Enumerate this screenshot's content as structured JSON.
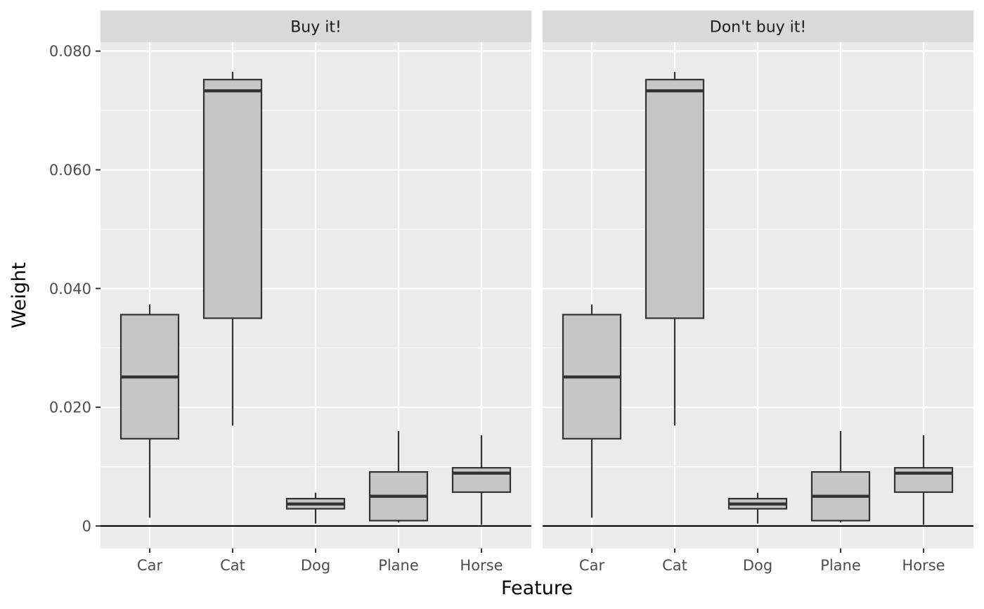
{
  "chart_data": {
    "type": "boxplot",
    "xlabel": "Feature",
    "ylabel": "Weight",
    "ylim": [
      -0.0038,
      0.0815
    ],
    "yticks": [
      0,
      0.02,
      0.04,
      0.06,
      0.08
    ],
    "ytick_labels": [
      "0",
      "0.020",
      "0.040",
      "0.060",
      "0.080"
    ],
    "categories": [
      "Car",
      "Cat",
      "Dog",
      "Plane",
      "Horse"
    ],
    "reference_line": 0,
    "grid": true,
    "legend": "none",
    "colors": {
      "panel_bg": "#ebebeb",
      "strip_bg": "#d9d9d9",
      "grid": "#ffffff",
      "box_fill": "#c6c6c6",
      "box_line": "#333333"
    },
    "panels": [
      {
        "strip": "Buy it!",
        "boxes": [
          {
            "category": "Car",
            "min": 0.0014,
            "q1": 0.0147,
            "median": 0.0251,
            "q3": 0.0356,
            "max": 0.0373
          },
          {
            "category": "Cat",
            "min": 0.0169,
            "q1": 0.035,
            "median": 0.0733,
            "q3": 0.0752,
            "max": 0.0765
          },
          {
            "category": "Dog",
            "min": 0.0004,
            "q1": 0.0029,
            "median": 0.0037,
            "q3": 0.0046,
            "max": 0.0056
          },
          {
            "category": "Plane",
            "min": 0.0006,
            "q1": 0.0009,
            "median": 0.005,
            "q3": 0.0091,
            "max": 0.016
          },
          {
            "category": "Horse",
            "min": 0.0002,
            "q1": 0.0057,
            "median": 0.0089,
            "q3": 0.0098,
            "max": 0.0153
          }
        ]
      },
      {
        "strip": "Don't buy it!",
        "boxes": [
          {
            "category": "Car",
            "min": 0.0014,
            "q1": 0.0147,
            "median": 0.0251,
            "q3": 0.0356,
            "max": 0.0373
          },
          {
            "category": "Cat",
            "min": 0.0169,
            "q1": 0.035,
            "median": 0.0733,
            "q3": 0.0752,
            "max": 0.0765
          },
          {
            "category": "Dog",
            "min": 0.0004,
            "q1": 0.0029,
            "median": 0.0037,
            "q3": 0.0046,
            "max": 0.0056
          },
          {
            "category": "Plane",
            "min": 0.0006,
            "q1": 0.0009,
            "median": 0.005,
            "q3": 0.0091,
            "max": 0.016
          },
          {
            "category": "Horse",
            "min": 0.0002,
            "q1": 0.0057,
            "median": 0.0089,
            "q3": 0.0098,
            "max": 0.0153
          }
        ]
      }
    ]
  }
}
